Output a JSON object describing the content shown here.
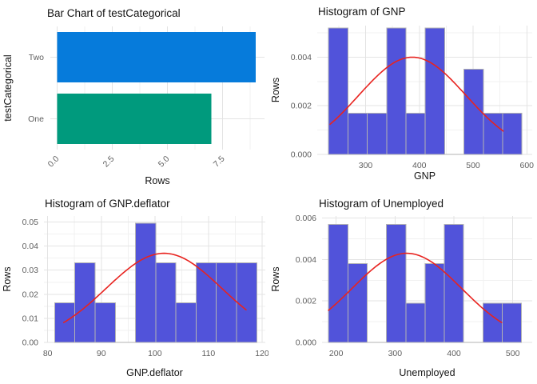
{
  "colors": {
    "background": "#ffffff",
    "histogram_fill": "#5153da",
    "histogram_stroke": "#b3b3b3",
    "curve_red": "#e8231f",
    "grid_major": "#e3e3e3",
    "grid_minor": "#f1f1f1",
    "tick_text": "#5f5f5f",
    "title_text": "#141414",
    "bar_blue": "#067bdb",
    "bar_teal": "#009a7d"
  },
  "chart_data": [
    {
      "type": "bar",
      "orientation": "horizontal",
      "title": "Bar Chart of testCategorical",
      "xlabel": "Rows",
      "ylabel": "testCategorical",
      "categories": [
        "Two",
        "One"
      ],
      "values": [
        9,
        7
      ],
      "bar_colors": [
        "#067bdb",
        "#009a7d"
      ],
      "xlim": [
        -0.3,
        9.4
      ],
      "x_major_ticks": [
        0.0,
        2.5,
        5.0,
        7.5
      ],
      "x_tick_labels": [
        "0.0",
        "2.5",
        "5.0",
        "7.5"
      ],
      "x_minor_ticks": [
        1.25,
        3.75,
        6.25,
        8.75
      ],
      "x_tick_rotation": 45,
      "grid": true,
      "legend": "none"
    },
    {
      "type": "histogram",
      "title": "Histogram of GNP",
      "xlabel": "GNP",
      "ylabel": "Rows",
      "bins": {
        "start": 231,
        "width": 36,
        "densities": [
          0.0052,
          0.0017,
          0.0017,
          0.0052,
          0.0017,
          0.0052,
          0,
          0.0035,
          0.0017,
          0.0017
        ]
      },
      "curve": {
        "mean": 387,
        "sd": 100,
        "peak": 0.004,
        "x_from": 234,
        "x_to": 556
      },
      "xlim": [
        210,
        610
      ],
      "ylim": [
        0,
        0.0053
      ],
      "x_major_ticks": [
        300,
        400,
        500,
        600
      ],
      "x_tick_labels": [
        "300",
        "400",
        "500",
        "600"
      ],
      "x_minor_ticks": [
        250,
        350,
        450,
        550
      ],
      "y_major_ticks": [
        0,
        0.002,
        0.004
      ],
      "y_tick_labels": [
        "0.000",
        "0.002",
        "0.004"
      ],
      "y_minor_ticks": [
        0.001,
        0.003,
        0.005
      ],
      "grid": true,
      "legend": "none"
    },
    {
      "type": "histogram",
      "title": "Histogram of GNP.deflator",
      "xlabel": "GNP.deflator",
      "ylabel": "Rows",
      "bins": {
        "start": 81.3,
        "width": 3.77,
        "densities": [
          0.0165,
          0.033,
          0.0165,
          0,
          0.0495,
          0.033,
          0.0165,
          0.033,
          0.033,
          0.033
        ]
      },
      "curve": {
        "mean": 101.7,
        "sd": 10.8,
        "peak": 0.037,
        "x_from": 83,
        "x_to": 117
      },
      "xlim": [
        79.3,
        120.6
      ],
      "x_major_ticks": [
        80,
        90,
        100,
        110,
        120
      ],
      "x_tick_labels": [
        "80",
        "90",
        "100",
        "110",
        "120"
      ],
      "x_minor_ticks": [
        85,
        95,
        105,
        115
      ],
      "ylim": [
        0,
        0.0525
      ],
      "y_major_ticks": [
        0,
        0.01,
        0.02,
        0.03,
        0.04,
        0.05
      ],
      "y_tick_labels": [
        "0.00",
        "0.01",
        "0.02",
        "0.03",
        "0.04",
        "0.05"
      ],
      "y_minor_ticks": [
        0.005,
        0.015,
        0.025,
        0.035,
        0.045
      ],
      "grid": true,
      "legend": "none"
    },
    {
      "type": "histogram",
      "title": "Histogram of Unemployed",
      "xlabel": "Unemployed",
      "ylabel": "Rows",
      "bins": {
        "start": 187,
        "width": 32.8,
        "densities": [
          0.0057,
          0.0038,
          0,
          0.0057,
          0.0019,
          0.0038,
          0.0057,
          0,
          0.0019,
          0.0019
        ]
      },
      "curve": {
        "mean": 320,
        "sd": 93,
        "peak": 0.0043,
        "x_from": 187,
        "x_to": 481
      },
      "xlim": [
        176,
        533
      ],
      "x_major_ticks": [
        200,
        300,
        400,
        500
      ],
      "x_tick_labels": [
        "200",
        "300",
        "400",
        "500"
      ],
      "x_minor_ticks": [
        250,
        350,
        450
      ],
      "ylim": [
        0,
        0.0061
      ],
      "y_major_ticks": [
        0,
        0.002,
        0.004,
        0.006
      ],
      "y_tick_labels": [
        "0.000",
        "0.002",
        "0.004",
        "0.006"
      ],
      "y_minor_ticks": [
        0.001,
        0.003,
        0.005
      ],
      "grid": true,
      "legend": "none"
    }
  ]
}
